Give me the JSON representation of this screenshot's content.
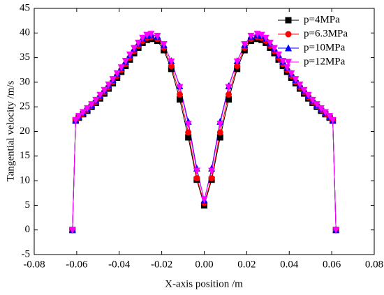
{
  "chart_data": {
    "type": "line",
    "xlabel": "X-axis position /m",
    "ylabel": "Tangential velocity /m/s",
    "x": [
      -0.062,
      -0.0605,
      -0.059,
      -0.057,
      -0.055,
      -0.053,
      -0.051,
      -0.049,
      -0.047,
      -0.045,
      -0.043,
      -0.041,
      -0.039,
      -0.037,
      -0.035,
      -0.033,
      -0.031,
      -0.029,
      -0.027,
      -0.025,
      -0.022,
      -0.019,
      -0.0155,
      -0.0115,
      -0.0075,
      -0.0035,
      0,
      0.0035,
      0.0075,
      0.0115,
      0.0155,
      0.019,
      0.022,
      0.025,
      0.027,
      0.029,
      0.031,
      0.033,
      0.035,
      0.037,
      0.039,
      0.041,
      0.043,
      0.045,
      0.047,
      0.049,
      0.051,
      0.053,
      0.055,
      0.057,
      0.059,
      0.0605,
      0.062
    ],
    "series": [
      {
        "name": "p=4MPa",
        "color": "#000000",
        "marker": "square",
        "values": [
          0,
          22.2,
          22.8,
          23.5,
          24.2,
          25.0,
          25.8,
          26.7,
          27.7,
          28.7,
          29.8,
          30.9,
          32.1,
          33.3,
          34.6,
          35.9,
          37.0,
          38.0,
          38.6,
          38.8,
          38.4,
          36.5,
          32.7,
          26.5,
          18.8,
          10.2,
          5.0,
          10.2,
          18.8,
          26.5,
          32.7,
          36.5,
          38.4,
          38.8,
          38.6,
          38.0,
          37.0,
          35.9,
          34.6,
          33.3,
          32.1,
          30.9,
          29.8,
          28.7,
          27.7,
          26.7,
          25.8,
          25.0,
          24.2,
          23.5,
          22.8,
          22.2,
          0
        ]
      },
      {
        "name": "p=6.3MPa",
        "color": "#ff0000",
        "marker": "circle",
        "values": [
          0,
          22.2,
          22.9,
          23.6,
          24.4,
          25.2,
          26.0,
          27.0,
          28.0,
          29.0,
          30.1,
          31.3,
          32.5,
          33.7,
          35.0,
          36.3,
          37.4,
          38.4,
          39.0,
          39.2,
          38.8,
          37.0,
          33.3,
          27.5,
          19.8,
          10.5,
          5.5,
          10.5,
          19.8,
          27.5,
          33.3,
          37.0,
          38.8,
          39.2,
          39.0,
          38.4,
          37.4,
          36.3,
          35.0,
          33.7,
          32.5,
          31.3,
          30.1,
          29.0,
          28.0,
          27.0,
          26.0,
          25.2,
          24.4,
          23.6,
          22.9,
          22.2,
          0
        ]
      },
      {
        "name": "p=10MPa",
        "color": "#0000ff",
        "marker": "triangle-up",
        "values": [
          0,
          22.3,
          23.0,
          23.8,
          24.6,
          25.4,
          26.3,
          27.3,
          28.3,
          29.4,
          30.5,
          31.7,
          32.9,
          34.2,
          35.5,
          36.8,
          37.9,
          38.9,
          39.4,
          39.6,
          39.3,
          37.6,
          34.3,
          29.2,
          22.0,
          12.5,
          6.0,
          12.5,
          22.0,
          29.2,
          34.3,
          37.6,
          39.3,
          39.6,
          39.4,
          38.9,
          37.9,
          36.8,
          35.5,
          34.2,
          32.9,
          31.7,
          30.5,
          29.4,
          28.3,
          27.3,
          26.3,
          25.4,
          24.6,
          23.8,
          23.0,
          22.3,
          0
        ]
      },
      {
        "name": "p=12MPa",
        "color": "#ff00ff",
        "marker": "triangle-down",
        "values": [
          0,
          22.3,
          23.1,
          23.9,
          24.7,
          25.5,
          26.4,
          27.4,
          28.4,
          29.5,
          30.6,
          31.8,
          33.0,
          34.3,
          35.6,
          36.9,
          38.0,
          39.0,
          39.6,
          39.8,
          39.4,
          37.7,
          34.2,
          29.0,
          21.5,
          12.0,
          6.2,
          12.0,
          21.5,
          29.0,
          34.2,
          37.7,
          39.4,
          39.8,
          39.6,
          39.0,
          38.0,
          36.9,
          35.6,
          34.3,
          33.0,
          31.8,
          30.6,
          29.5,
          28.4,
          27.4,
          26.4,
          25.5,
          24.7,
          23.9,
          23.1,
          22.3,
          0
        ]
      }
    ],
    "xlim": [
      -0.08,
      0.08
    ],
    "xticks": [
      {
        "value": -0.08,
        "label": "-0.08"
      },
      {
        "value": -0.06,
        "label": "-0.06"
      },
      {
        "value": -0.04,
        "label": "-0.04"
      },
      {
        "value": -0.02,
        "label": "-0.02"
      },
      {
        "value": 0,
        "label": "0.00"
      },
      {
        "value": 0.02,
        "label": "0.02"
      },
      {
        "value": 0.04,
        "label": "0.04"
      },
      {
        "value": 0.06,
        "label": "0.06"
      },
      {
        "value": 0.08,
        "label": "0.08"
      }
    ],
    "ylim": [
      -5,
      45
    ],
    "yticks": [
      -5,
      0,
      5,
      10,
      15,
      20,
      25,
      30,
      35,
      40,
      45
    ],
    "grid": false,
    "legend": "upper right"
  }
}
